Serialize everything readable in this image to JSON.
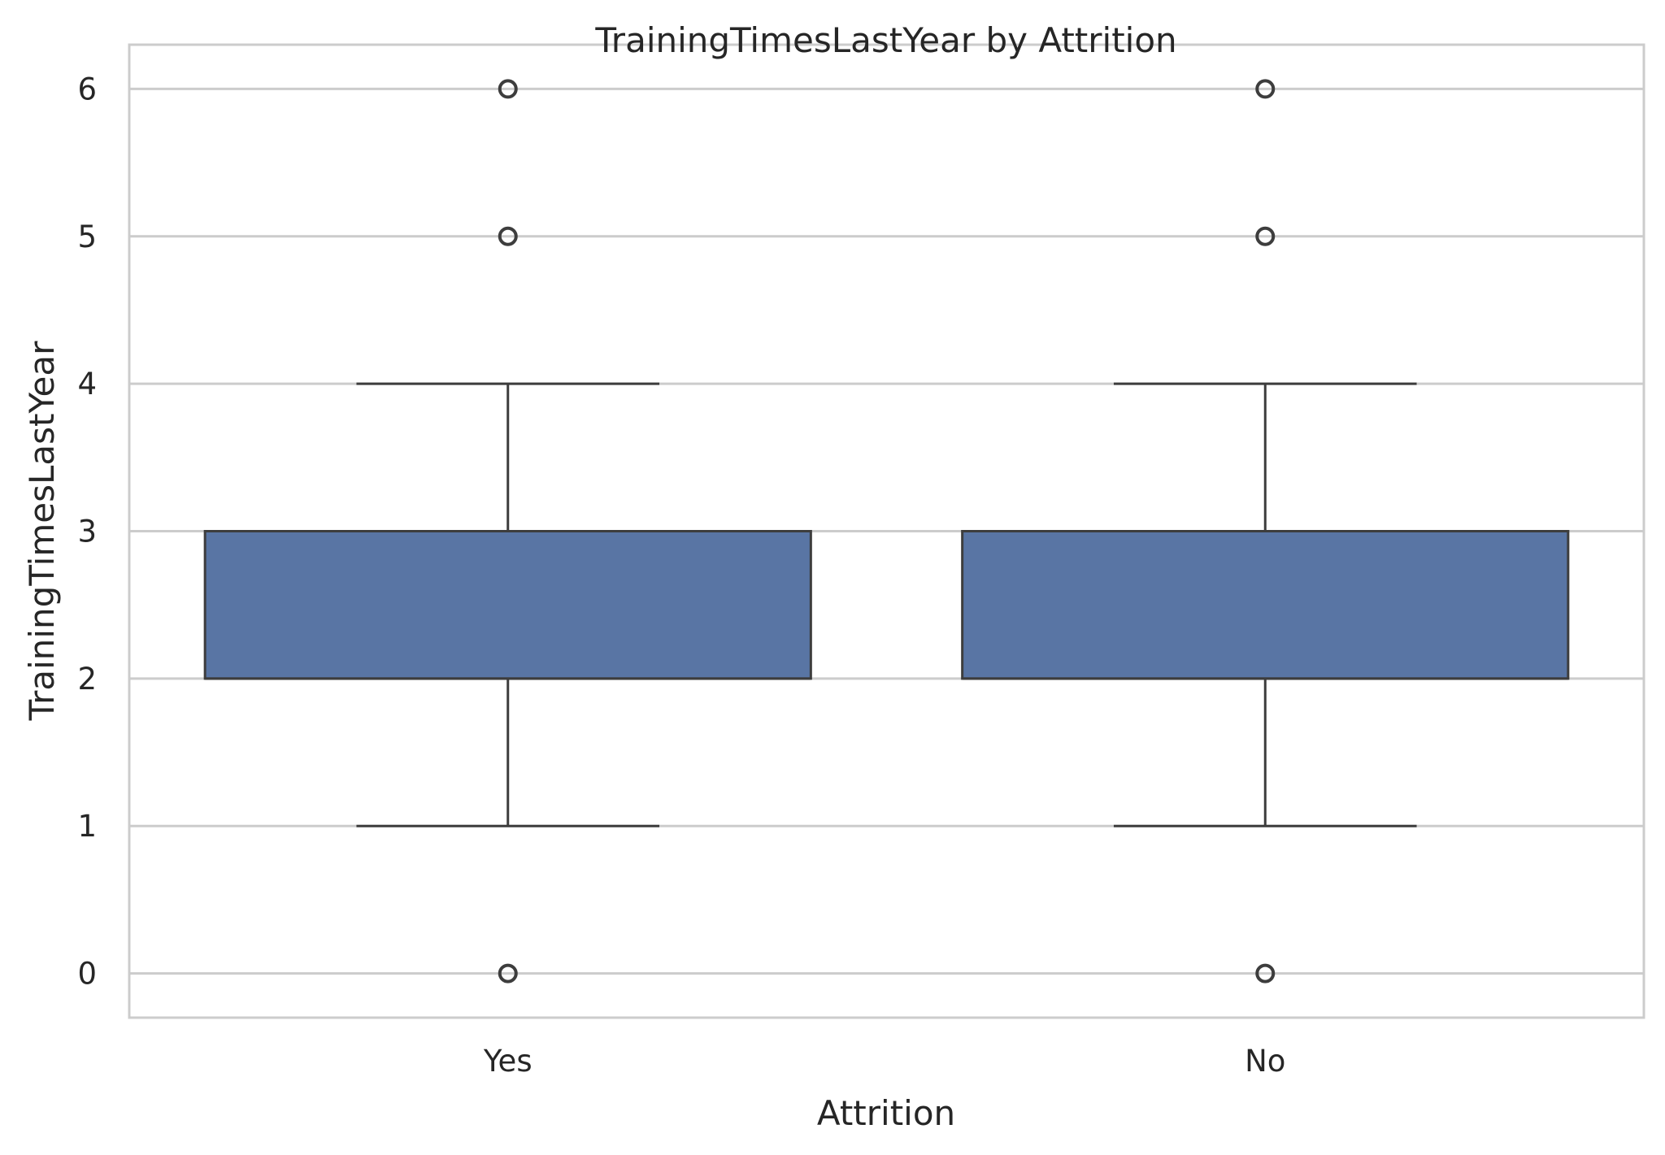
{
  "chart_data": {
    "type": "box",
    "title": "TrainingTimesLastYear by Attrition",
    "xlabel": "Attrition",
    "ylabel": "TrainingTimesLastYear",
    "categories": [
      "Yes",
      "No"
    ],
    "ylim": [
      -0.3,
      6.3
    ],
    "yticks": [
      0,
      1,
      2,
      3,
      4,
      5,
      6
    ],
    "grid": true,
    "grid_axis": "y",
    "box_color": "#5975a4",
    "line_color": "#3d3d3d",
    "grid_color": "#cccccc",
    "boxes": [
      {
        "category": "Yes",
        "whisker_low": 1,
        "q1": 2,
        "median": 2,
        "q3": 3,
        "whisker_high": 4,
        "outliers": [
          0,
          5,
          6
        ]
      },
      {
        "category": "No",
        "whisker_low": 1,
        "q1": 2,
        "median": 2,
        "q3": 3,
        "whisker_high": 4,
        "outliers": [
          0,
          5,
          6
        ]
      }
    ]
  }
}
